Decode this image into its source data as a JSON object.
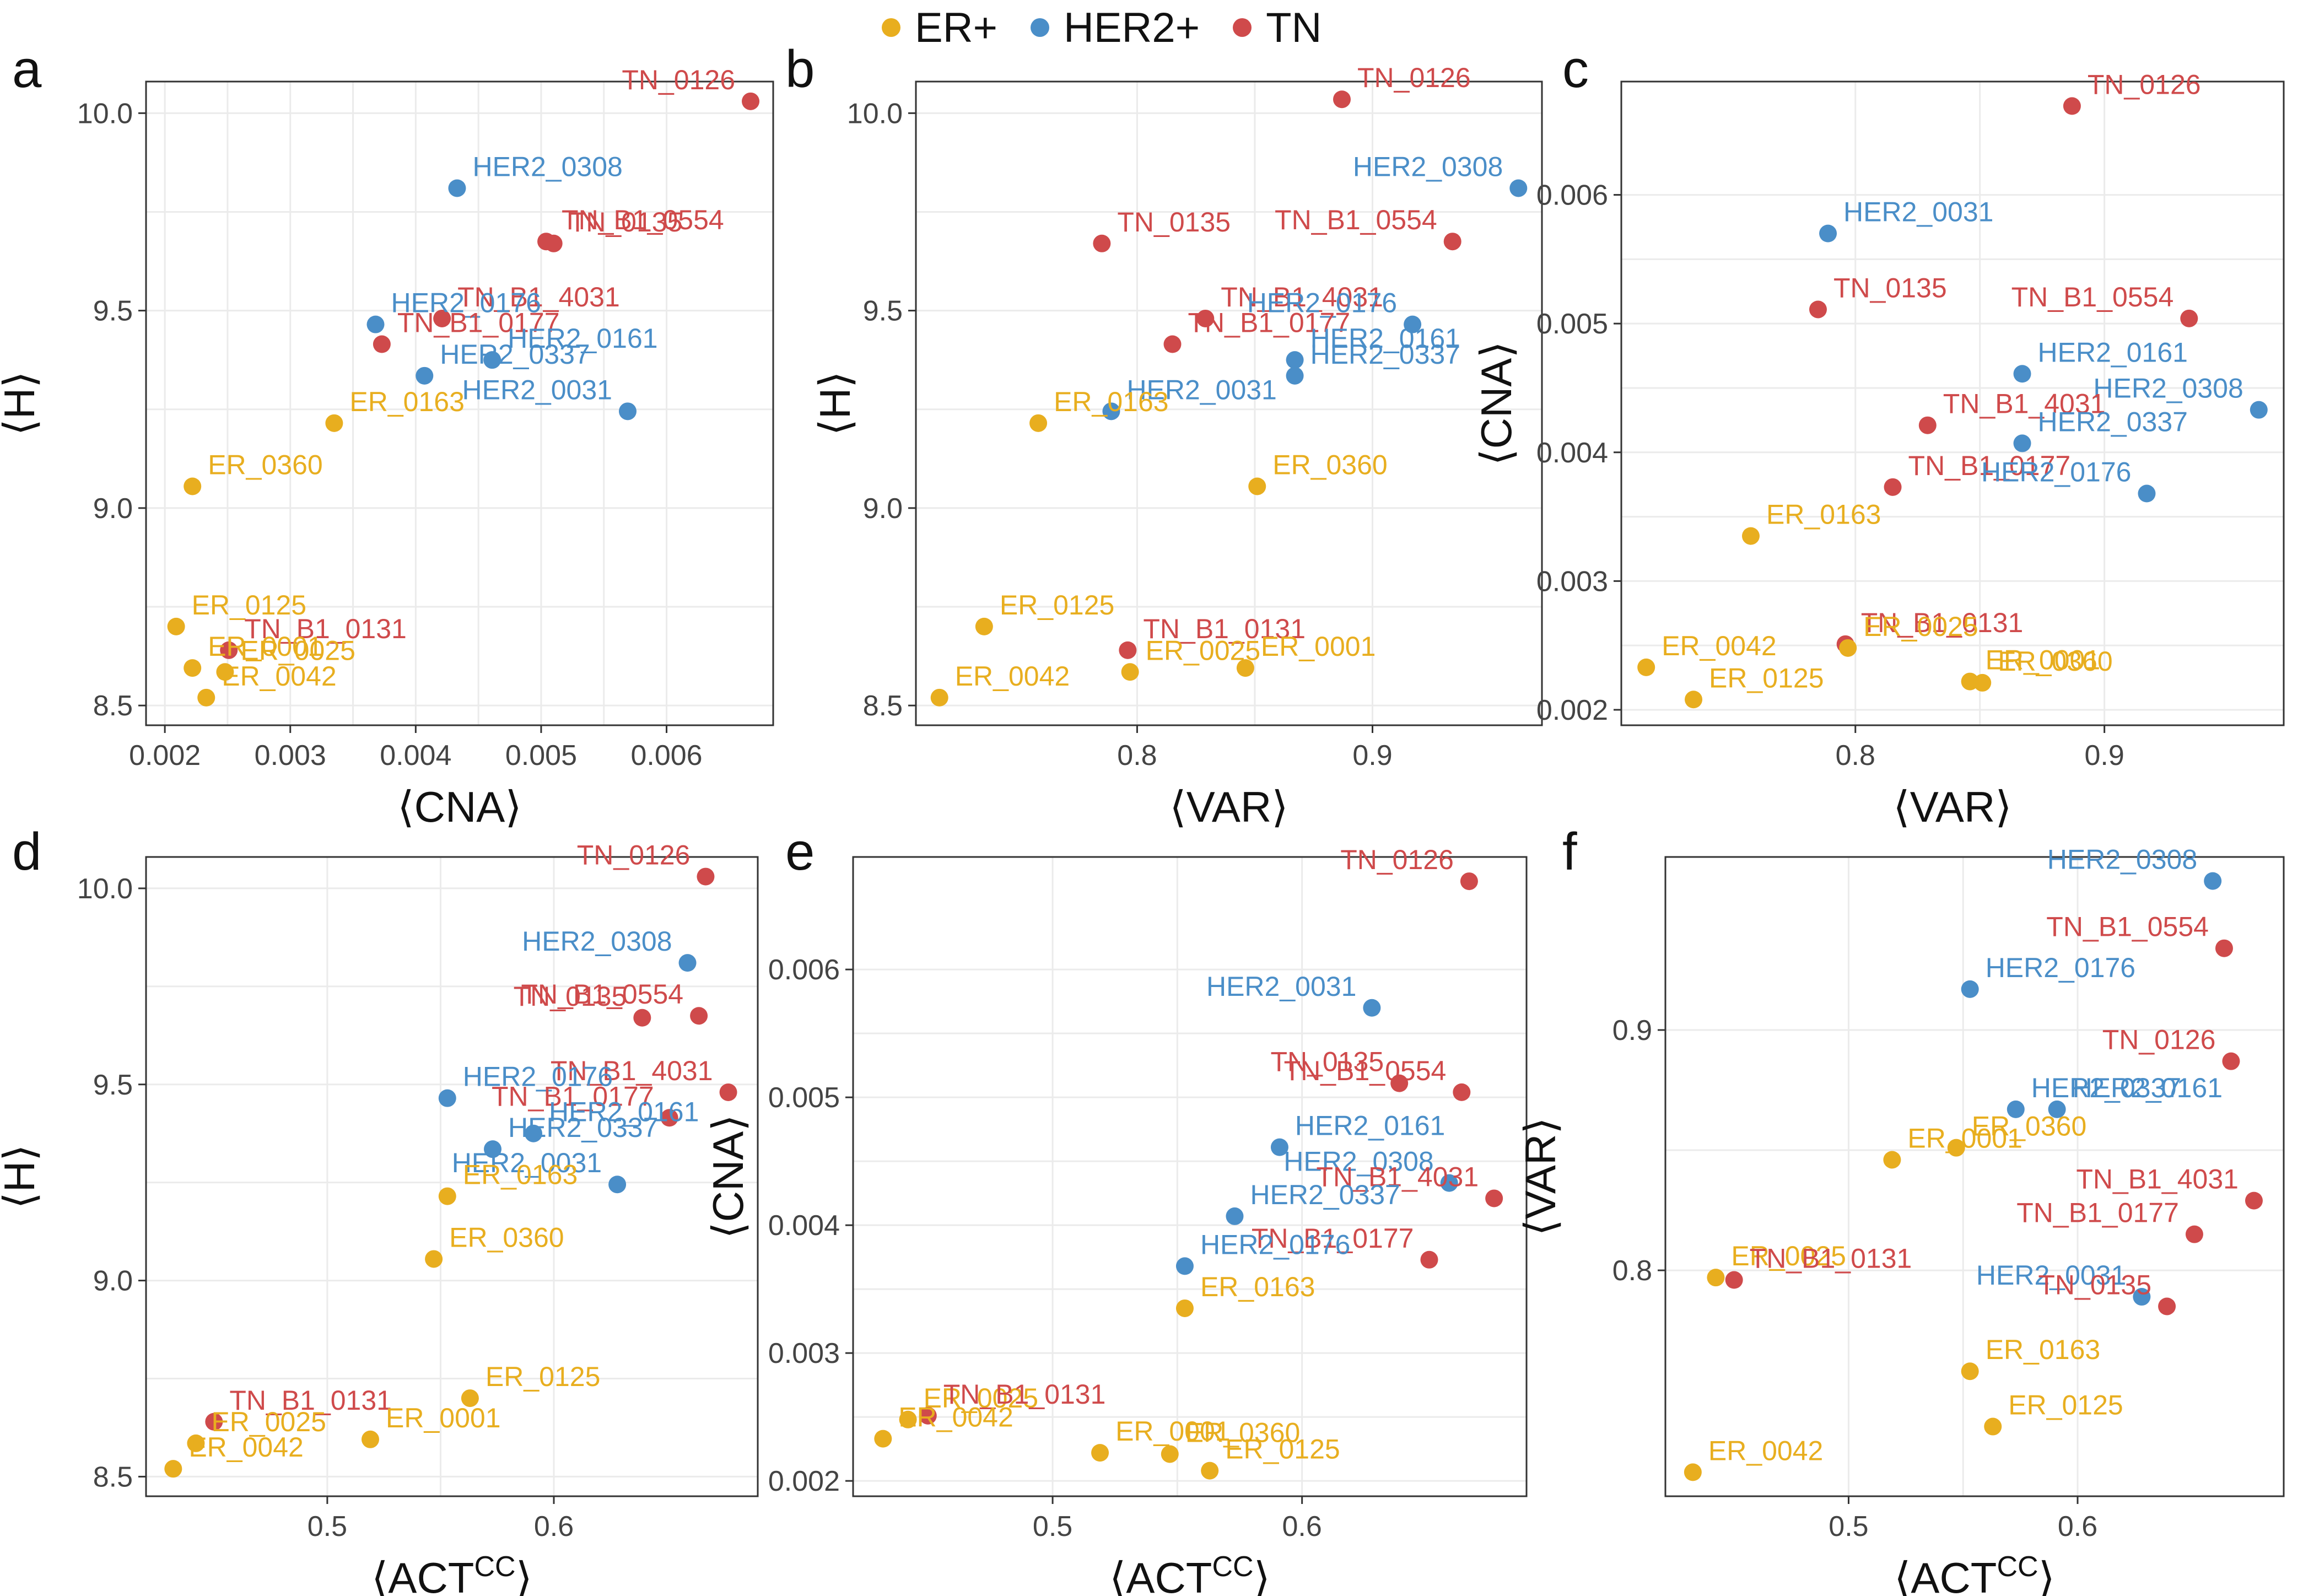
{
  "legend": {
    "items": [
      {
        "label": "ER+",
        "key": "ER",
        "color": "#E8AE1F"
      },
      {
        "label": "HER2+",
        "key": "HER2",
        "color": "#4A8EC8"
      },
      {
        "label": "TN",
        "key": "TN",
        "color": "#CF4A4B"
      }
    ]
  },
  "chart_data": [
    {
      "panel": "a",
      "type": "scatter",
      "xlabel": "⟨CNA⟩",
      "ylabel": "⟨H⟩",
      "xlim": [
        0.00185,
        0.00685
      ],
      "ylim": [
        8.45,
        10.08
      ],
      "xticks": [
        0.002,
        0.003,
        0.004,
        0.005,
        0.006
      ],
      "xtick_labels": [
        "0.002",
        "0.003",
        "0.004",
        "0.005",
        "0.006"
      ],
      "yticks": [
        8.5,
        9.0,
        9.5,
        10.0
      ],
      "ytick_labels": [
        "8.5",
        "9.0",
        "9.5",
        "10.0"
      ],
      "points": [
        {
          "label": "TN_0126",
          "group": "TN",
          "x": 0.00667,
          "y": 10.03
        },
        {
          "label": "HER2_0308",
          "group": "HER2",
          "x": 0.00433,
          "y": 9.81
        },
        {
          "label": "TN_B1_0554",
          "group": "TN",
          "x": 0.00504,
          "y": 9.675
        },
        {
          "label": "TN_0135",
          "group": "TN",
          "x": 0.0051,
          "y": 9.67
        },
        {
          "label": "TN_B1_4031",
          "group": "TN",
          "x": 0.00421,
          "y": 9.48
        },
        {
          "label": "HER2_0176",
          "group": "HER2",
          "x": 0.00368,
          "y": 9.465
        },
        {
          "label": "TN_B1_0177",
          "group": "TN",
          "x": 0.00373,
          "y": 9.415
        },
        {
          "label": "HER2_0161",
          "group": "HER2",
          "x": 0.00461,
          "y": 9.375
        },
        {
          "label": "HER2_0337",
          "group": "HER2",
          "x": 0.00407,
          "y": 9.335
        },
        {
          "label": "HER2_0031",
          "group": "HER2",
          "x": 0.00569,
          "y": 9.245
        },
        {
          "label": "ER_0163",
          "group": "ER",
          "x": 0.00335,
          "y": 9.215
        },
        {
          "label": "ER_0360",
          "group": "ER",
          "x": 0.00222,
          "y": 9.055
        },
        {
          "label": "ER_0125",
          "group": "ER",
          "x": 0.00209,
          "y": 8.7
        },
        {
          "label": "TN_B1_0131",
          "group": "TN",
          "x": 0.00251,
          "y": 8.64
        },
        {
          "label": "ER_0001",
          "group": "ER",
          "x": 0.00222,
          "y": 8.595
        },
        {
          "label": "ER_0025",
          "group": "ER",
          "x": 0.00248,
          "y": 8.585
        },
        {
          "label": "ER_0042",
          "group": "ER",
          "x": 0.00233,
          "y": 8.52
        }
      ]
    },
    {
      "panel": "b",
      "type": "scatter",
      "xlabel": "⟨VAR⟩",
      "ylabel": "⟨H⟩",
      "xlim": [
        0.706,
        0.972
      ],
      "ylim": [
        8.45,
        10.08
      ],
      "xticks": [
        0.8,
        0.9
      ],
      "xtick_labels": [
        "0.8",
        "0.9"
      ],
      "yticks": [
        8.5,
        9.0,
        9.5,
        10.0
      ],
      "ytick_labels": [
        "8.5",
        "9.0",
        "9.5",
        "10.0"
      ],
      "points": [
        {
          "label": "TN_0126",
          "group": "TN",
          "x": 0.887,
          "y": 10.035
        },
        {
          "label": "HER2_0308",
          "group": "HER2",
          "x": 0.962,
          "y": 9.81
        },
        {
          "label": "TN_0135",
          "group": "TN",
          "x": 0.785,
          "y": 9.67
        },
        {
          "label": "TN_B1_0554",
          "group": "TN",
          "x": 0.934,
          "y": 9.675
        },
        {
          "label": "TN_B1_4031",
          "group": "TN",
          "x": 0.829,
          "y": 9.48
        },
        {
          "label": "HER2_0176",
          "group": "HER2",
          "x": 0.917,
          "y": 9.465
        },
        {
          "label": "TN_B1_0177",
          "group": "TN",
          "x": 0.815,
          "y": 9.415
        },
        {
          "label": "HER2_0161",
          "group": "HER2",
          "x": 0.867,
          "y": 9.375
        },
        {
          "label": "HER2_0337",
          "group": "HER2",
          "x": 0.867,
          "y": 9.335
        },
        {
          "label": "HER2_0031",
          "group": "HER2",
          "x": 0.789,
          "y": 9.245
        },
        {
          "label": "ER_0163",
          "group": "ER",
          "x": 0.758,
          "y": 9.215
        },
        {
          "label": "ER_0360",
          "group": "ER",
          "x": 0.851,
          "y": 9.055
        },
        {
          "label": "ER_0125",
          "group": "ER",
          "x": 0.735,
          "y": 8.7
        },
        {
          "label": "TN_B1_0131",
          "group": "TN",
          "x": 0.796,
          "y": 8.64
        },
        {
          "label": "ER_0001",
          "group": "ER",
          "x": 0.846,
          "y": 8.595
        },
        {
          "label": "ER_0025",
          "group": "ER",
          "x": 0.797,
          "y": 8.585
        },
        {
          "label": "ER_0042",
          "group": "ER",
          "x": 0.716,
          "y": 8.52
        }
      ]
    },
    {
      "panel": "c",
      "type": "scatter",
      "xlabel": "⟨VAR⟩",
      "ylabel": "⟨CNA⟩",
      "xlim": [
        0.706,
        0.972
      ],
      "ylim": [
        0.00188,
        0.00688
      ],
      "xticks": [
        0.8,
        0.9
      ],
      "xtick_labels": [
        "0.8",
        "0.9"
      ],
      "yticks": [
        0.002,
        0.003,
        0.004,
        0.005,
        0.006
      ],
      "ytick_labels": [
        "0.002",
        "0.003",
        "0.004",
        "0.005",
        "0.006"
      ],
      "points": [
        {
          "label": "TN_0126",
          "group": "TN",
          "x": 0.887,
          "y": 0.00669
        },
        {
          "label": "HER2_0031",
          "group": "HER2",
          "x": 0.789,
          "y": 0.0057
        },
        {
          "label": "TN_0135",
          "group": "TN",
          "x": 0.785,
          "y": 0.00511
        },
        {
          "label": "TN_B1_0554",
          "group": "TN",
          "x": 0.934,
          "y": 0.00504
        },
        {
          "label": "HER2_0161",
          "group": "HER2",
          "x": 0.867,
          "y": 0.00461
        },
        {
          "label": "HER2_0308",
          "group": "HER2",
          "x": 0.962,
          "y": 0.00433
        },
        {
          "label": "TN_B1_4031",
          "group": "TN",
          "x": 0.829,
          "y": 0.00421
        },
        {
          "label": "HER2_0337",
          "group": "HER2",
          "x": 0.867,
          "y": 0.00407
        },
        {
          "label": "TN_B1_0177",
          "group": "TN",
          "x": 0.815,
          "y": 0.00373
        },
        {
          "label": "HER2_0176",
          "group": "HER2",
          "x": 0.917,
          "y": 0.00368
        },
        {
          "label": "ER_0163",
          "group": "ER",
          "x": 0.758,
          "y": 0.00335
        },
        {
          "label": "TN_B1_0131",
          "group": "TN",
          "x": 0.796,
          "y": 0.00251
        },
        {
          "label": "ER_0042",
          "group": "ER",
          "x": 0.716,
          "y": 0.00233
        },
        {
          "label": "ER_0025",
          "group": "ER",
          "x": 0.797,
          "y": 0.00248
        },
        {
          "label": "ER_0001",
          "group": "ER",
          "x": 0.846,
          "y": 0.00222
        },
        {
          "label": "ER_0360",
          "group": "ER",
          "x": 0.851,
          "y": 0.00221
        },
        {
          "label": "ER_0125",
          "group": "ER",
          "x": 0.735,
          "y": 0.00208
        }
      ]
    },
    {
      "panel": "d",
      "type": "scatter",
      "xlabel": "⟨ACT^CC⟩",
      "ylabel": "⟨H⟩",
      "xlim": [
        0.42,
        0.69
      ],
      "ylim": [
        8.45,
        10.08
      ],
      "xticks": [
        0.5,
        0.6
      ],
      "xtick_labels": [
        "0.5",
        "0.6"
      ],
      "yticks": [
        8.5,
        9.0,
        9.5,
        10.0
      ],
      "ytick_labels": [
        "8.5",
        "9.0",
        "9.5",
        "10.0"
      ],
      "points": [
        {
          "label": "TN_0126",
          "group": "TN",
          "x": 0.667,
          "y": 10.03
        },
        {
          "label": "HER2_0308",
          "group": "HER2",
          "x": 0.659,
          "y": 9.81
        },
        {
          "label": "TN_B1_0554",
          "group": "TN",
          "x": 0.664,
          "y": 9.675
        },
        {
          "label": "TN_0135",
          "group": "TN",
          "x": 0.639,
          "y": 9.67
        },
        {
          "label": "TN_B1_4031",
          "group": "TN",
          "x": 0.677,
          "y": 9.48
        },
        {
          "label": "HER2_0176",
          "group": "HER2",
          "x": 0.553,
          "y": 9.465
        },
        {
          "label": "TN_B1_0177",
          "group": "TN",
          "x": 0.651,
          "y": 9.415
        },
        {
          "label": "HER2_0161",
          "group": "HER2",
          "x": 0.591,
          "y": 9.375
        },
        {
          "label": "HER2_0337",
          "group": "HER2",
          "x": 0.573,
          "y": 9.335
        },
        {
          "label": "HER2_0031",
          "group": "HER2",
          "x": 0.628,
          "y": 9.245
        },
        {
          "label": "ER_0163",
          "group": "ER",
          "x": 0.553,
          "y": 9.215
        },
        {
          "label": "ER_0360",
          "group": "ER",
          "x": 0.547,
          "y": 9.055
        },
        {
          "label": "ER_0125",
          "group": "ER",
          "x": 0.563,
          "y": 8.7
        },
        {
          "label": "TN_B1_0131",
          "group": "TN",
          "x": 0.45,
          "y": 8.64
        },
        {
          "label": "ER_0001",
          "group": "ER",
          "x": 0.519,
          "y": 8.595
        },
        {
          "label": "ER_0025",
          "group": "ER",
          "x": 0.442,
          "y": 8.585
        },
        {
          "label": "ER_0042",
          "group": "ER",
          "x": 0.432,
          "y": 8.52
        }
      ]
    },
    {
      "panel": "e",
      "type": "scatter",
      "xlabel": "⟨ACT^CC⟩",
      "ylabel": "⟨CNA⟩",
      "xlim": [
        0.42,
        0.69
      ],
      "ylim": [
        0.00188,
        0.00688
      ],
      "xticks": [
        0.5,
        0.6
      ],
      "xtick_labels": [
        "0.5",
        "0.6"
      ],
      "yticks": [
        0.002,
        0.003,
        0.004,
        0.005,
        0.006
      ],
      "ytick_labels": [
        "0.002",
        "0.003",
        "0.004",
        "0.005",
        "0.006"
      ],
      "points": [
        {
          "label": "TN_0126",
          "group": "TN",
          "x": 0.667,
          "y": 0.00669
        },
        {
          "label": "HER2_0031",
          "group": "HER2",
          "x": 0.628,
          "y": 0.0057
        },
        {
          "label": "TN_0135",
          "group": "TN",
          "x": 0.639,
          "y": 0.00511
        },
        {
          "label": "TN_B1_0554",
          "group": "TN",
          "x": 0.664,
          "y": 0.00504
        },
        {
          "label": "HER2_0161",
          "group": "HER2",
          "x": 0.591,
          "y": 0.00461
        },
        {
          "label": "HER2_0308",
          "group": "HER2",
          "x": 0.659,
          "y": 0.00433
        },
        {
          "label": "TN_B1_4031",
          "group": "TN",
          "x": 0.677,
          "y": 0.00421
        },
        {
          "label": "HER2_0337",
          "group": "HER2",
          "x": 0.573,
          "y": 0.00407
        },
        {
          "label": "TN_B1_0177",
          "group": "TN",
          "x": 0.651,
          "y": 0.00373
        },
        {
          "label": "HER2_0176",
          "group": "HER2",
          "x": 0.553,
          "y": 0.00368
        },
        {
          "label": "ER_0163",
          "group": "ER",
          "x": 0.553,
          "y": 0.00335
        },
        {
          "label": "ER_0025",
          "group": "ER",
          "x": 0.442,
          "y": 0.00248
        },
        {
          "label": "TN_B1_0131",
          "group": "TN",
          "x": 0.45,
          "y": 0.00251
        },
        {
          "label": "ER_0042",
          "group": "ER",
          "x": 0.432,
          "y": 0.00233
        },
        {
          "label": "ER_0001",
          "group": "ER",
          "x": 0.519,
          "y": 0.00222
        },
        {
          "label": "ER_0360",
          "group": "ER",
          "x": 0.547,
          "y": 0.00221
        },
        {
          "label": "ER_0125",
          "group": "ER",
          "x": 0.563,
          "y": 0.00208
        }
      ]
    },
    {
      "panel": "f",
      "type": "scatter",
      "xlabel": "⟨ACT^CC⟩",
      "ylabel": "⟨VAR⟩",
      "xlim": [
        0.42,
        0.69
      ],
      "ylim": [
        0.706,
        0.972
      ],
      "xticks": [
        0.5,
        0.6
      ],
      "xtick_labels": [
        "0.5",
        "0.6"
      ],
      "yticks": [
        0.8,
        0.9
      ],
      "ytick_labels": [
        "0.8",
        "0.9"
      ],
      "points": [
        {
          "label": "HER2_0308",
          "group": "HER2",
          "x": 0.659,
          "y": 0.962
        },
        {
          "label": "TN_B1_0554",
          "group": "TN",
          "x": 0.664,
          "y": 0.934
        },
        {
          "label": "HER2_0176",
          "group": "HER2",
          "x": 0.553,
          "y": 0.917
        },
        {
          "label": "TN_0126",
          "group": "TN",
          "x": 0.667,
          "y": 0.887
        },
        {
          "label": "HER2_0337",
          "group": "HER2",
          "x": 0.573,
          "y": 0.867
        },
        {
          "label": "HER2_0161",
          "group": "HER2",
          "x": 0.591,
          "y": 0.867
        },
        {
          "label": "ER_0001",
          "group": "ER",
          "x": 0.519,
          "y": 0.846
        },
        {
          "label": "ER_0360",
          "group": "ER",
          "x": 0.547,
          "y": 0.851
        },
        {
          "label": "TN_B1_4031",
          "group": "TN",
          "x": 0.677,
          "y": 0.829
        },
        {
          "label": "TN_B1_0177",
          "group": "TN",
          "x": 0.651,
          "y": 0.815
        },
        {
          "label": "ER_0025",
          "group": "ER",
          "x": 0.442,
          "y": 0.797
        },
        {
          "label": "TN_B1_0131",
          "group": "TN",
          "x": 0.45,
          "y": 0.796
        },
        {
          "label": "HER2_0031",
          "group": "HER2",
          "x": 0.628,
          "y": 0.789
        },
        {
          "label": "TN_0135",
          "group": "TN",
          "x": 0.639,
          "y": 0.785
        },
        {
          "label": "ER_0163",
          "group": "ER",
          "x": 0.553,
          "y": 0.758
        },
        {
          "label": "ER_0125",
          "group": "ER",
          "x": 0.563,
          "y": 0.735
        },
        {
          "label": "ER_0042",
          "group": "ER",
          "x": 0.432,
          "y": 0.716
        }
      ]
    }
  ]
}
